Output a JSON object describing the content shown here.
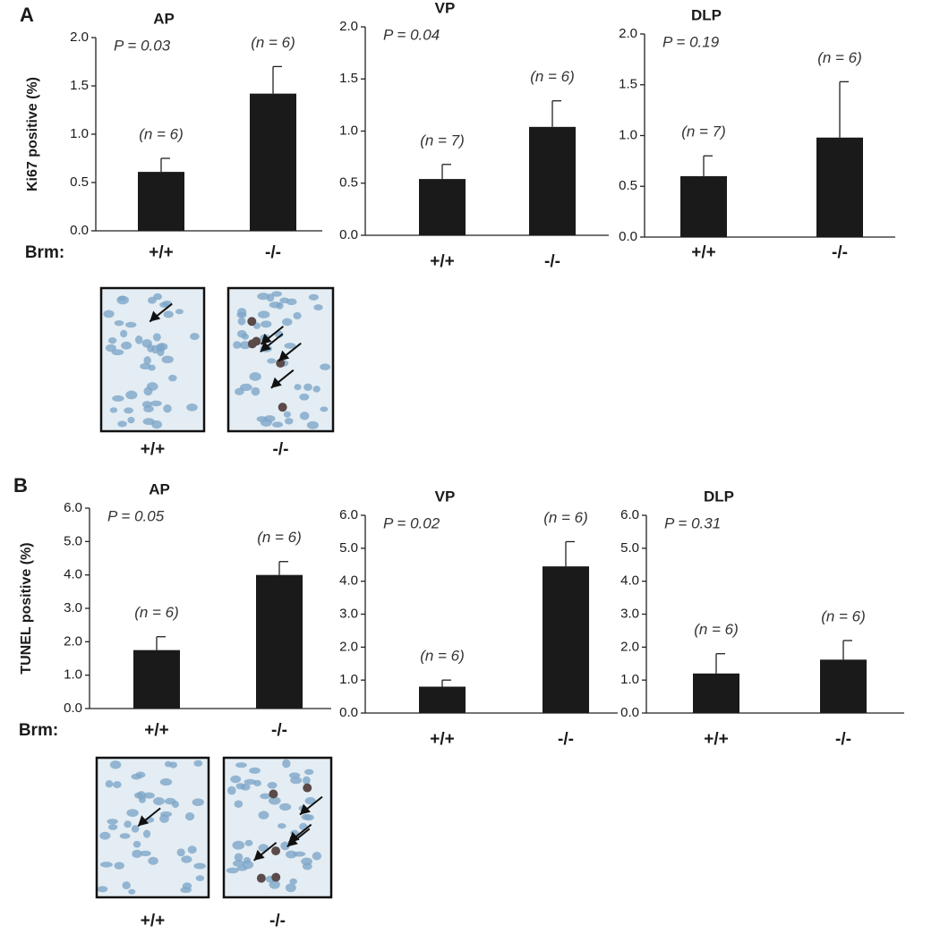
{
  "chart_data": [
    {
      "type": "bar",
      "panel": "A",
      "title": "AP",
      "annotation": "P = 0.03",
      "ylabel": "Ki67 positive (%)",
      "xlabel": "Brm:",
      "categories": [
        "+/+",
        "-/-"
      ],
      "values": [
        0.61,
        1.42
      ],
      "errors": [
        0.14,
        0.28
      ],
      "n_labels": [
        "(n = 6)",
        "(n = 6)"
      ],
      "color": "#1a1a1a",
      "ylim": [
        0,
        2
      ],
      "yticks": [
        {
          "value": 0,
          "label": "0.0"
        },
        {
          "value": 0.5,
          "label": "0.5"
        },
        {
          "value": 1,
          "label": "1.0"
        },
        {
          "value": 1.5,
          "label": "1.5"
        },
        {
          "value": 2,
          "label": "2.0"
        }
      ]
    },
    {
      "type": "bar",
      "title": "VP",
      "annotation": "P = 0.04",
      "categories": [
        "+/+",
        "-/-"
      ],
      "values": [
        0.54,
        1.04
      ],
      "errors": [
        0.14,
        0.25
      ],
      "n_labels": [
        "(n = 7)",
        "(n = 6)"
      ],
      "color": "#1a1a1a",
      "ylim": [
        0,
        2
      ],
      "yticks": [
        {
          "value": 0,
          "label": "0.0"
        },
        {
          "value": 0.5,
          "label": "0.5"
        },
        {
          "value": 1,
          "label": "1.0"
        },
        {
          "value": 1.5,
          "label": "1.5"
        },
        {
          "value": 2,
          "label": "2.0"
        }
      ]
    },
    {
      "type": "bar",
      "title": "DLP",
      "annotation": "P = 0.19",
      "categories": [
        "+/+",
        "-/-"
      ],
      "values": [
        0.6,
        0.98
      ],
      "errors": [
        0.2,
        0.55
      ],
      "n_labels": [
        "(n = 7)",
        "(n = 6)"
      ],
      "color": "#1a1a1a",
      "ylim": [
        0,
        2
      ],
      "yticks": [
        {
          "value": 0,
          "label": "0.0"
        },
        {
          "value": 0.5,
          "label": "0.5"
        },
        {
          "value": 1,
          "label": "1.0"
        },
        {
          "value": 1.5,
          "label": "1.5"
        },
        {
          "value": 2,
          "label": "2.0"
        }
      ]
    },
    {
      "type": "bar",
      "panel": "B",
      "title": "AP",
      "annotation": "P = 0.05",
      "ylabel": "TUNEL positive (%)",
      "xlabel": "Brm:",
      "categories": [
        "+/+",
        "-/-"
      ],
      "values": [
        1.75,
        4.0
      ],
      "errors": [
        0.4,
        0.4
      ],
      "n_labels": [
        "(n = 6)",
        "(n = 6)"
      ],
      "color": "#1a1a1a",
      "ylim": [
        0,
        6
      ],
      "yticks": [
        {
          "value": 0,
          "label": "0.0"
        },
        {
          "value": 1,
          "label": "1.0"
        },
        {
          "value": 2,
          "label": "2.0"
        },
        {
          "value": 3,
          "label": "3.0"
        },
        {
          "value": 4,
          "label": "4.0"
        },
        {
          "value": 5,
          "label": "5.0"
        },
        {
          "value": 6,
          "label": "6.0"
        }
      ]
    },
    {
      "type": "bar",
      "title": "VP",
      "annotation": "P = 0.02",
      "categories": [
        "+/+",
        "-/-"
      ],
      "values": [
        0.8,
        4.45
      ],
      "errors": [
        0.2,
        0.75
      ],
      "n_labels": [
        "(n = 6)",
        "(n = 6)"
      ],
      "color": "#1a1a1a",
      "ylim": [
        0,
        6
      ],
      "yticks": [
        {
          "value": 0,
          "label": "0.0"
        },
        {
          "value": 1,
          "label": "1.0"
        },
        {
          "value": 2,
          "label": "2.0"
        },
        {
          "value": 3,
          "label": "3.0"
        },
        {
          "value": 4,
          "label": "4.0"
        },
        {
          "value": 5,
          "label": "5.0"
        },
        {
          "value": 6,
          "label": "6.0"
        }
      ]
    },
    {
      "type": "bar",
      "title": "DLP",
      "annotation": "P = 0.31",
      "categories": [
        "+/+",
        "-/-"
      ],
      "values": [
        1.2,
        1.62
      ],
      "errors": [
        0.6,
        0.58
      ],
      "n_labels": [
        "(n = 6)",
        "(n = 6)"
      ],
      "color": "#1a1a1a",
      "ylim": [
        0,
        6
      ],
      "yticks": [
        {
          "value": 0,
          "label": "0.0"
        },
        {
          "value": 1,
          "label": "1.0"
        },
        {
          "value": 2,
          "label": "2.0"
        },
        {
          "value": 3,
          "label": "3.0"
        },
        {
          "value": 4,
          "label": "4.0"
        },
        {
          "value": 5,
          "label": "5.0"
        },
        {
          "value": 6,
          "label": "6.0"
        }
      ]
    }
  ],
  "micrographs": [
    {
      "labels": [
        "+/+",
        "-/-"
      ]
    },
    {
      "labels": [
        "+/+",
        "-/-"
      ]
    }
  ]
}
